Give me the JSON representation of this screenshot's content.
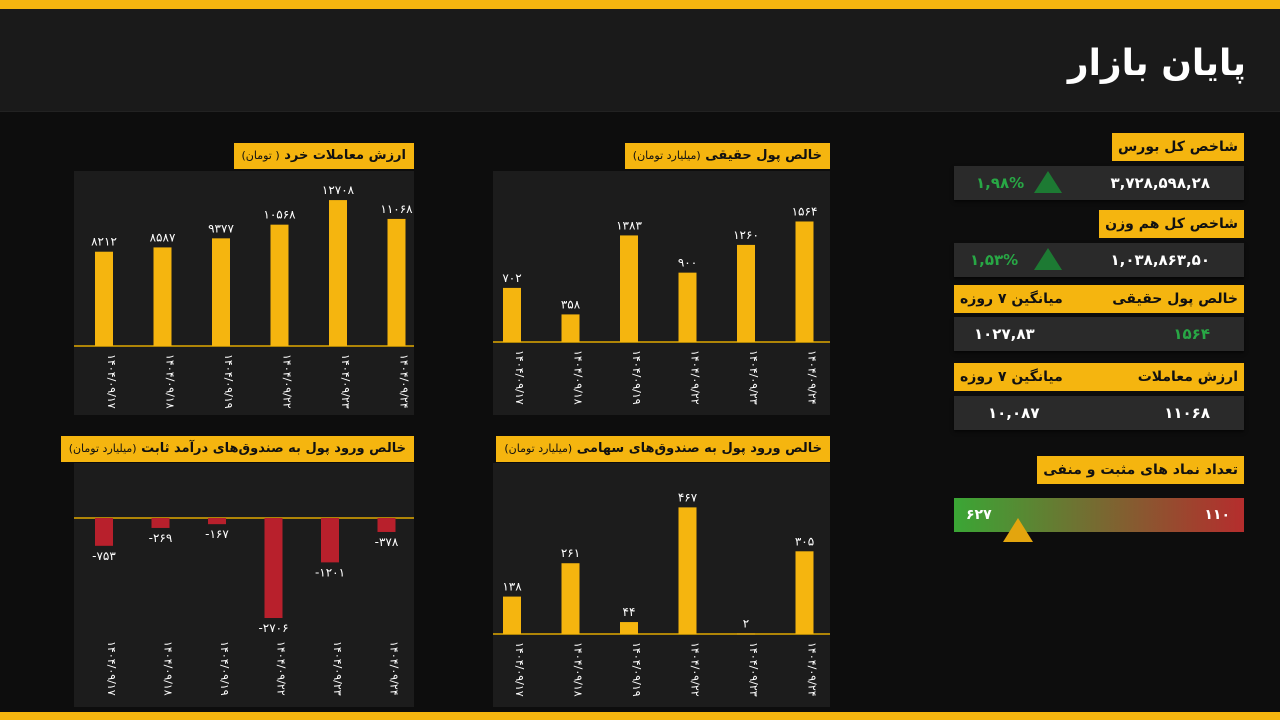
{
  "page_title": "پایان بازار",
  "market": {
    "bourse_index": {
      "label": "شاخص کل بورس",
      "value": "۳,۷۲۸,۵۹۸,۲۸",
      "change": "۱,۹۸%"
    },
    "equal_weight_index": {
      "label": "شاخص کل هم وزن",
      "value": "۱,۰۳۸,۸۶۳,۵۰",
      "change": "۱,۵۳%"
    },
    "real_money": {
      "label": "خالص پول حقیقی",
      "avg_label": "میانگین ۷ روزه",
      "value": "۱۵۶۴",
      "avg_value": "۱۰۲۷,۸۳"
    },
    "trade_value": {
      "label": "ارزش معاملات",
      "avg_label": "میانگین ۷ روزه",
      "value": "۱۱۰۶۸",
      "avg_value": "۱۰,۰۸۷"
    },
    "symbols": {
      "label": "تعداد نماد های مثبت و منفی",
      "positive": "۶۲۷",
      "negative": "۱۱۰"
    }
  },
  "colors": {
    "accent": "#f5b50f",
    "negative": "#b8202c",
    "positive": "#28a745"
  },
  "chart_data": [
    {
      "id": "retail",
      "type": "bar",
      "title": "ارزش معاملات خرد",
      "subtitle": "( تومان)",
      "categories": [
        "۱۴۰۴/۰۹/۱۷",
        "۱۴۰۴/۰۹/۱۸",
        "۱۴۰۴/۰۹/۱۹",
        "۱۴۰۴/۰۹/۲۲",
        "۱۴۰۴/۰۹/۲۳",
        "۱۴۰۴/۰۹/۲۴"
      ],
      "values": [
        8212,
        8587,
        9377,
        10568,
        12708,
        11068
      ],
      "value_labels": [
        "۸۲۱۲",
        "۸۵۸۷",
        "۹۳۷۷",
        "۱۰۵۶۸",
        "۱۲۷۰۸",
        "۱۱۰۶۸"
      ],
      "ylim": [
        0,
        13500
      ]
    },
    {
      "id": "real-money",
      "type": "bar",
      "title": "خالص پول حقیقی",
      "subtitle": "(میلیارد تومان)",
      "categories": [
        "۱۴۰۴/۰۹/۱۷",
        "۱۴۰۴/۰۹/۱۸",
        "۱۴۰۴/۰۹/۱۹",
        "۱۴۰۴/۰۹/۲۲",
        "۱۴۰۴/۰۹/۲۳",
        "۱۴۰۴/۰۹/۲۴"
      ],
      "values": [
        702,
        358,
        1383,
        900,
        1260,
        1564
      ],
      "value_labels": [
        "۷۰۲",
        "۳۵۸",
        "۱۳۸۳",
        "۹۰۰",
        "۱۲۶۰",
        "۱۵۶۴"
      ],
      "ylim": [
        0,
        1700
      ]
    },
    {
      "id": "fixed-income",
      "type": "bar",
      "title": "خالص ورود پول به صندوق‌های درآمد ثابت",
      "subtitle": "(میلیارد تومان)",
      "categories": [
        "۱۴۰۴/۰۹/۱۷",
        "۱۴۰۴/۰۹/۱۸",
        "۱۴۰۴/۰۹/۱۹",
        "۱۴۰۴/۰۹/۲۲",
        "۱۴۰۴/۰۹/۲۳",
        "۱۴۰۴/۰۹/۲۴"
      ],
      "values": [
        -753,
        -269,
        -167,
        -2706,
        -1201,
        -378
      ],
      "value_labels": [
        "-۷۵۳",
        "-۲۶۹",
        "-۱۶۷",
        "-۲۷۰۶",
        "-۱۲۰۱",
        "-۳۷۸"
      ],
      "ylim": [
        -2706,
        0
      ]
    },
    {
      "id": "equity-funds",
      "type": "bar",
      "title": "خالص ورود پول به صندوق‌های سهامی",
      "subtitle": "(میلیارد تومان)",
      "categories": [
        "۱۴۰۴/۰۹/۱۷",
        "۱۴۰۴/۰۹/۱۸",
        "۱۴۰۴/۰۹/۱۹",
        "۱۴۰۴/۰۹/۲۲",
        "۱۴۰۴/۰۹/۲۳",
        "۱۴۰۴/۰۹/۲۴"
      ],
      "values": [
        138,
        261,
        44,
        467,
        2,
        305
      ],
      "value_labels": [
        "۱۳۸",
        "۲۶۱",
        "۴۴",
        "۴۶۷",
        "۲",
        "۳۰۵"
      ],
      "ylim": [
        0,
        520
      ]
    }
  ]
}
